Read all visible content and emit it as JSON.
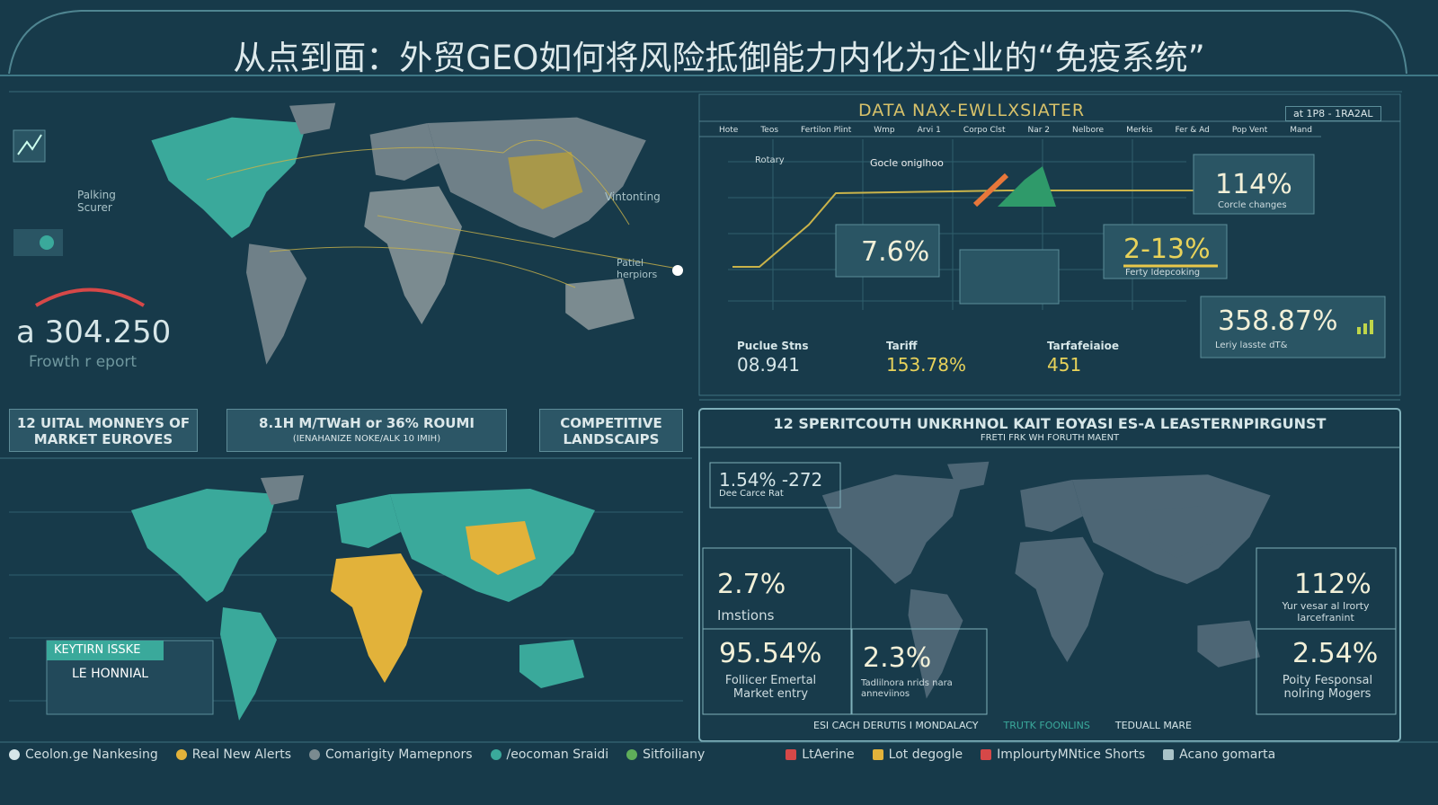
{
  "header": {
    "title": "从点到面：外贸GEO如何将风险抵御能力内化为企业的“免疫系统”"
  },
  "left_map": {
    "labels": [
      "Palking Scurer",
      "Vintonting",
      "Patiel herpiors"
    ],
    "gauge_value": "a 304.250",
    "gauge_label": "Frowth r eport"
  },
  "left_buttons": [
    {
      "text": "12 UITAL MONNEYS OF MARKET EUROVES"
    },
    {
      "text": "8.1H M/TWaH or 36% ROUMI",
      "sub": "(IENAHANIZE NOKE/ALK 10 IMIH)"
    },
    {
      "text": "COMPETITIVE LANDSCAIPS"
    }
  ],
  "data_panel": {
    "title": "DATA NAX-EWLLXSIATER",
    "range": "at 1P8 - 1RA2AL",
    "tabs": [
      "Hote",
      "Teos",
      "Fertilon Plint",
      "Wmp",
      "Arvi 1",
      "Corpo Clst",
      "Nar 2",
      "Nelbore",
      "Merkis",
      "Fer & Ad",
      "Pop Vent",
      "Mand"
    ],
    "annotations": [
      "Rotary",
      "Gocle oniglhoo"
    ],
    "cards": [
      {
        "value": "7.6%"
      },
      {
        "value": "114%",
        "label": "Corcle changes"
      },
      {
        "value": "2-13%",
        "label": "Ferty Idepcoking"
      },
      {
        "value": "358.87%",
        "label": "Leriy lasste dT&"
      }
    ]
  },
  "stats_row": [
    {
      "label": "Puclue Stns",
      "value": "08.941"
    },
    {
      "label": "Tariff",
      "value": "153.78%"
    },
    {
      "label": "Tarfafeiaioe",
      "value": "451"
    }
  ],
  "risk_panel": {
    "title": "12 SPERITCOUTH UNKRHNOL KAIT EOYASI ES-A LEASTERNPIRGUNST",
    "subtitle": "FRETI FRK WH FORUTH MAENT",
    "cards": [
      {
        "value": "1.54% -272",
        "label": "Dee Carce Rat"
      },
      {
        "value": "2.7%",
        "label": "Imstions"
      },
      {
        "value": "95.54%",
        "label": "Follicer Emertal Market entry"
      },
      {
        "value": "2.3%",
        "label": "Tadlilnora nrids nara anneviinos"
      },
      {
        "value": "112%",
        "label": "Yur vesar al Irorty Iarcefranint"
      },
      {
        "value": "2.54%",
        "label": "Poity Fesponsal nolring Mogers"
      }
    ],
    "footer": [
      "ESI CACH DERUTIS I MONDALACY",
      "TRUTK FOONLINS",
      "TEDUALL MARE"
    ]
  },
  "key_issue": {
    "title": "KEYTIRN ISSKE",
    "item": "LE HONNIAL"
  },
  "legend": [
    "Ceolon.ge Nankesing",
    "Real New Alerts",
    "Comarigity Mamepnors",
    "/eocoman Sraidi",
    "Sitfoiliany",
    "LtAerine",
    "Lot degogle",
    "ImplourtyMNtice Shorts",
    "Acano gomarta"
  ]
}
